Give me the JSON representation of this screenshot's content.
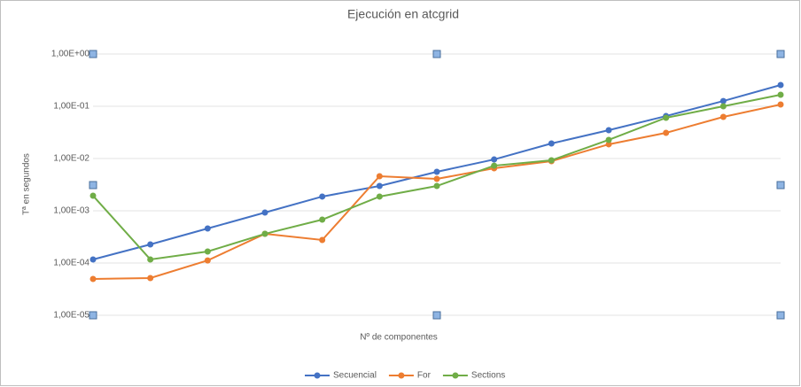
{
  "chart_data": {
    "type": "line",
    "title": "Ejecución en atcgrid",
    "x_label": "Nº de componentes",
    "y_label": "Tª en segundos",
    "categories": [
      null,
      null,
      null,
      null,
      null,
      null,
      null,
      null,
      null,
      null,
      null,
      null,
      null
    ],
    "series": [
      {
        "name": "Secuencial",
        "color": "#4472c4",
        "values": [
          0.000117,
          0.000227,
          0.000458,
          0.000925,
          0.00187,
          0.00298,
          0.00557,
          0.0096,
          0.0194,
          0.0349,
          0.065,
          0.126,
          0.255
        ]
      },
      {
        "name": "For",
        "color": "#ed7d31",
        "values": [
          4.95e-05,
          5.15e-05,
          0.000112,
          0.000362,
          0.000276,
          0.00458,
          0.00407,
          0.0065,
          0.0089,
          0.0187,
          0.031,
          0.0626,
          0.108
        ]
      },
      {
        "name": "Sections",
        "color": "#70ad47",
        "values": [
          0.00194,
          0.000117,
          0.000166,
          0.000362,
          0.000677,
          0.00187,
          0.00298,
          0.0073,
          0.00925,
          0.0227,
          0.0602,
          0.1,
          0.166
        ]
      }
    ],
    "ylim": [
      1e-05,
      1
    ],
    "yticks": [
      {
        "value": 1e-05,
        "label": "1,00E-05"
      },
      {
        "value": 0.0001,
        "label": "1,00E-04"
      },
      {
        "value": 0.001,
        "label": "1,00E-03"
      },
      {
        "value": 0.01,
        "label": "1,00E-02"
      },
      {
        "value": 0.1,
        "label": "1,00E-01"
      },
      {
        "value": 1,
        "label": "1,00E+00"
      }
    ],
    "log_scale": true,
    "grid": true,
    "legend": "bottom"
  }
}
